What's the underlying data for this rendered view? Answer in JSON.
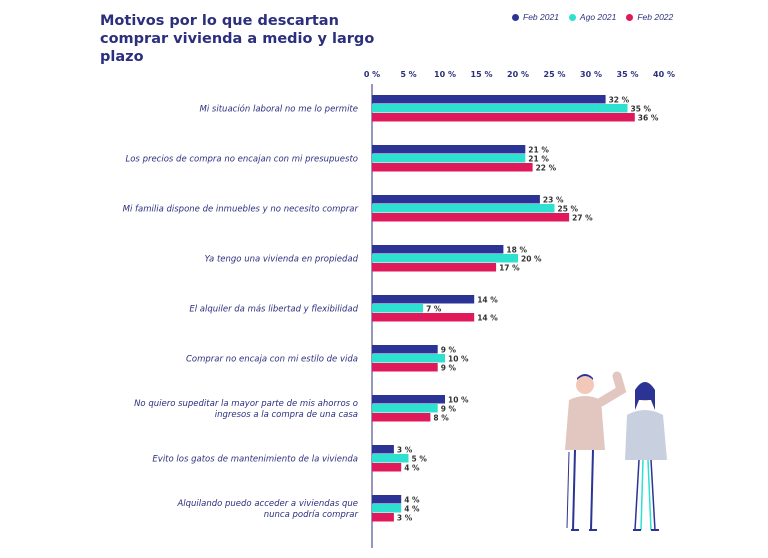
{
  "title": "Motivos por lo que descartan comprar vivienda a medio y largo plazo",
  "chart_data": {
    "type": "bar",
    "orientation": "horizontal",
    "title": "Motivos por lo que descartan comprar vivienda a medio y largo plazo",
    "xlim": [
      0,
      40
    ],
    "ticks": [
      "0 %",
      "5 %",
      "10 %",
      "15 %",
      "20 %",
      "25 %",
      "30 %",
      "35 %",
      "40 %"
    ],
    "tick_values": [
      0,
      5,
      10,
      15,
      20,
      25,
      30,
      35,
      40
    ],
    "legend_position": "top-right",
    "categories": [
      [
        "Mi situación laboral no me lo permite"
      ],
      [
        "Los precios de compra no encajan con mi presupuesto"
      ],
      [
        "Mi familia dispone de inmuebles y no necesito  comprar"
      ],
      [
        "Ya  tengo una vivienda en propiedad"
      ],
      [
        "El alquiler da más libertad y flexibilidad"
      ],
      [
        "Comprar no encaja con mi estilo de vida"
      ],
      [
        "No quiero  supeditar la mayor parte de mis ahorros o",
        "ingresos a la compra de una casa"
      ],
      [
        "Evito los gatos de mantenimiento de la vivienda"
      ],
      [
        "Alquilando puedo acceder a viviendas que",
        "nunca podría comprar"
      ]
    ],
    "series": [
      {
        "name": "Feb 2021",
        "color": "#2b3494",
        "values": [
          32,
          21,
          23,
          18,
          14,
          9,
          10,
          3,
          4
        ]
      },
      {
        "name": "Ago 2021",
        "color": "#2ee0cf",
        "values": [
          35,
          21,
          25,
          20,
          7,
          10,
          9,
          5,
          4
        ]
      },
      {
        "name": "Feb 2022",
        "color": "#e0195a",
        "values": [
          36,
          22,
          27,
          17,
          14,
          9,
          8,
          4,
          3
        ]
      }
    ],
    "value_suffix": " %"
  }
}
